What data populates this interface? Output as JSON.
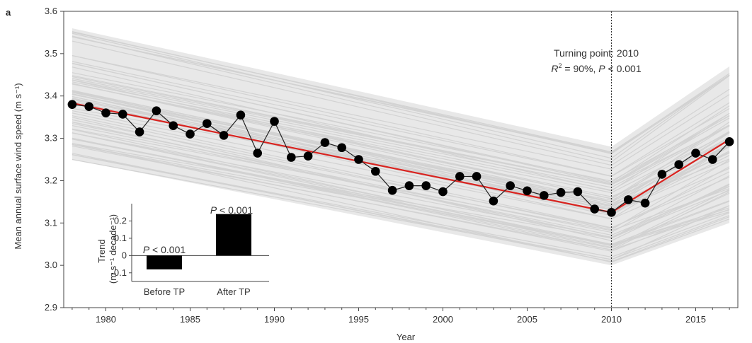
{
  "panel_label": "a",
  "annotation": {
    "line1": "Turning point: 2010",
    "line2_r": "R",
    "line2_sup": "2",
    "line2_mid": " = 90%, ",
    "line2_p": "P",
    "line2_end": " < 0.001"
  },
  "inset_annotations": {
    "before_p": "P",
    "before_rest": " < 0.001",
    "after_p": "P",
    "after_rest": " < 0.001"
  },
  "colors": {
    "series": "#222222",
    "marker": "#000000",
    "trend": "#d9231f",
    "ensemble": "#d2d2d2",
    "band": "#e8e8e8",
    "inset_bar": "#000000"
  },
  "chart_data": [
    {
      "type": "line",
      "xlabel": "Year",
      "ylabel": "Mean annual surface wind speed (m s⁻¹)",
      "xlim": [
        1977.5,
        2017.5
      ],
      "ylim": [
        2.9,
        3.6
      ],
      "xticks": [
        1980,
        1985,
        1990,
        1995,
        2000,
        2005,
        2010,
        2015
      ],
      "yticks": [
        2.9,
        3.0,
        3.1,
        3.2,
        3.3,
        3.4,
        3.5,
        3.6
      ],
      "grid": false,
      "turning_point_x": 2010,
      "series": [
        {
          "x": [
            1978,
            1979,
            1980,
            1981,
            1982,
            1983,
            1984,
            1985,
            1986,
            1987,
            1988,
            1989,
            1990,
            1991,
            1992,
            1993,
            1994,
            1995,
            1996,
            1997,
            1998,
            1999,
            2000,
            2001,
            2002,
            2003,
            2004,
            2005,
            2006,
            2007,
            2008,
            2009,
            2010,
            2011,
            2012,
            2013,
            2014,
            2015,
            2016,
            2017
          ],
          "values": [
            3.38,
            3.375,
            3.36,
            3.357,
            3.315,
            3.365,
            3.33,
            3.31,
            3.335,
            3.307,
            3.355,
            3.265,
            3.34,
            3.255,
            3.258,
            3.29,
            3.278,
            3.25,
            3.222,
            3.177,
            3.188,
            3.188,
            3.174,
            3.21,
            3.21,
            3.152,
            3.188,
            3.176,
            3.165,
            3.172,
            3.174,
            3.133,
            3.125,
            3.155,
            3.147,
            3.215,
            3.238,
            3.265,
            3.25,
            3.292
          ]
        },
        {
          "x": [
            1978,
            2010,
            2017
          ],
          "values": [
            3.383,
            3.125,
            3.297
          ]
        }
      ],
      "ensemble_band": {
        "x": [
          1978,
          2010,
          2017
        ],
        "upper": [
          3.56,
          3.28,
          3.47
        ],
        "lower": [
          3.25,
          3.0,
          3.1
        ]
      }
    },
    {
      "type": "bar",
      "ylabel_main": "Trend",
      "ylabel_unit": "(m s⁻¹ decade⁻¹)",
      "categories": [
        "Before TP",
        "After TP"
      ],
      "values": [
        -0.08,
        0.24
      ],
      "ylim": [
        -0.15,
        0.3
      ],
      "yticks": [
        -0.1,
        0,
        0.1,
        0.2
      ],
      "ytick_labels": [
        "-0.1",
        "0",
        "0.1",
        "0.2"
      ]
    }
  ]
}
